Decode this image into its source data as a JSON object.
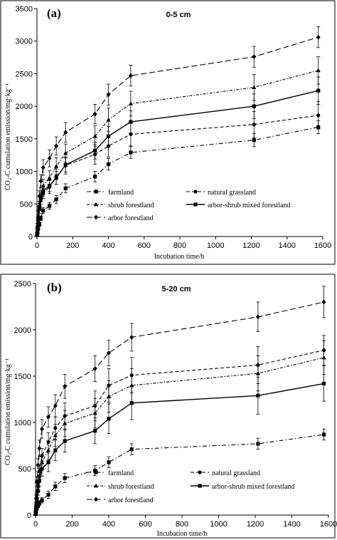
{
  "chart_data": [
    {
      "type": "line",
      "panel_label": "(a)",
      "depth": "0-5 cm",
      "xlabel": "Incubation time/h",
      "ylabel": "CO₂-C cumulation emission/mg·kg⁻¹",
      "xlim": [
        0,
        1600
      ],
      "ylim": [
        0,
        3500
      ],
      "x_ticks": [
        "0",
        "200",
        "400",
        "600",
        "800",
        "1000",
        "1200",
        "1400",
        "1600"
      ],
      "y_ticks": [
        "0",
        "500",
        "1000",
        "1500",
        "2000",
        "2500",
        "3000",
        "3500"
      ],
      "grid": false,
      "x": [
        1,
        3,
        7,
        14,
        21,
        35,
        70,
        108,
        160,
        325,
        400,
        525,
        1215,
        1575
      ],
      "series": [
        {
          "name": "farmland",
          "values": [
            20,
            60,
            120,
            190,
            280,
            400,
            470,
            570,
            740,
            920,
            1110,
            1290,
            1480,
            1680
          ],
          "errors": [
            8,
            15,
            25,
            30,
            35,
            45,
            50,
            60,
            70,
            80,
            90,
            90,
            100,
            100
          ]
        },
        {
          "name": "natural grassland",
          "values": [
            40,
            120,
            250,
            420,
            560,
            660,
            760,
            920,
            1090,
            1260,
            1390,
            1570,
            1720,
            1860
          ],
          "errors": [
            10,
            25,
            40,
            60,
            70,
            80,
            100,
            120,
            130,
            150,
            170,
            180,
            200,
            210
          ]
        },
        {
          "name": "shrub forestland",
          "values": [
            45,
            140,
            300,
            480,
            620,
            780,
            900,
            1080,
            1280,
            1540,
            1790,
            2040,
            2290,
            2550
          ],
          "errors": [
            12,
            30,
            45,
            60,
            80,
            100,
            110,
            130,
            140,
            160,
            180,
            190,
            200,
            210
          ]
        },
        {
          "name": "arbor-shrub mixed forestland",
          "values": [
            40,
            130,
            280,
            450,
            600,
            700,
            780,
            900,
            1100,
            1320,
            1540,
            1760,
            2000,
            2240
          ],
          "errors": [
            10,
            25,
            40,
            55,
            70,
            80,
            90,
            100,
            110,
            130,
            150,
            170,
            190,
            210
          ]
        },
        {
          "name": "arbor forestland",
          "values": [
            60,
            200,
            400,
            620,
            850,
            1060,
            1200,
            1390,
            1600,
            1880,
            2180,
            2470,
            2760,
            3060
          ],
          "errors": [
            15,
            40,
            60,
            80,
            100,
            120,
            130,
            140,
            150,
            150,
            160,
            160,
            160,
            160
          ]
        }
      ],
      "markers": [
        "square",
        "circle",
        "triangle",
        "square",
        "diamond"
      ],
      "dashes": [
        "6,3,1.5,3",
        "5,3",
        "4,2,1.5,2",
        "",
        "8,4"
      ],
      "legend": {
        "placement": "upper-middle",
        "rows": [
          [
            "farmland",
            "natural grassland"
          ],
          [
            "shrub forestland",
            "arbor-shrub mixed forestland"
          ],
          [
            "arbor forestland"
          ]
        ]
      }
    },
    {
      "type": "line",
      "panel_label": "(b)",
      "depth": "5-20 cm",
      "xlabel": "Incubation time/h",
      "ylabel": "CO₂-C cumulation emission/mg·kg⁻¹",
      "xlim": [
        0,
        1600
      ],
      "ylim": [
        0,
        2500
      ],
      "x_ticks": [
        "0",
        "200",
        "400",
        "600",
        "800",
        "1000",
        "1200",
        "1400",
        "1600"
      ],
      "y_ticks": [
        "0",
        "500",
        "1000",
        "1500",
        "2000",
        "2500"
      ],
      "grid": false,
      "x": [
        1,
        3,
        7,
        14,
        21,
        35,
        70,
        108,
        160,
        325,
        400,
        525,
        1215,
        1575
      ],
      "series": [
        {
          "name": "farmland",
          "values": [
            10,
            40,
            70,
            100,
            130,
            160,
            220,
            310,
            400,
            480,
            570,
            710,
            770,
            870
          ],
          "errors": [
            5,
            10,
            15,
            20,
            25,
            30,
            40,
            45,
            50,
            55,
            60,
            60,
            60,
            60
          ]
        },
        {
          "name": "natural grassland",
          "values": [
            35,
            110,
            220,
            350,
            470,
            640,
            790,
            940,
            1070,
            1180,
            1400,
            1510,
            1620,
            1780
          ],
          "errors": [
            10,
            25,
            40,
            55,
            70,
            80,
            100,
            120,
            140,
            160,
            180,
            190,
            200,
            160
          ]
        },
        {
          "name": "shrub forestland",
          "values": [
            30,
            100,
            200,
            320,
            430,
            570,
            700,
            860,
            990,
            1100,
            1280,
            1400,
            1530,
            1700
          ],
          "errors": [
            10,
            25,
            40,
            55,
            70,
            80,
            100,
            120,
            140,
            160,
            170,
            180,
            190,
            180
          ]
        },
        {
          "name": "arbor-shrub mixed forestland",
          "values": [
            20,
            80,
            160,
            260,
            370,
            500,
            570,
            700,
            800,
            910,
            1040,
            1210,
            1290,
            1420
          ],
          "errors": [
            8,
            20,
            30,
            45,
            60,
            80,
            100,
            110,
            120,
            140,
            160,
            180,
            200,
            190
          ]
        },
        {
          "name": "arbor forestland",
          "values": [
            40,
            180,
            360,
            540,
            720,
            930,
            1060,
            1180,
            1390,
            1580,
            1750,
            1920,
            2140,
            2300
          ],
          "errors": [
            12,
            35,
            55,
            70,
            90,
            100,
            110,
            120,
            130,
            140,
            140,
            150,
            160,
            170
          ]
        }
      ],
      "markers": [
        "square",
        "circle",
        "triangle",
        "square",
        "diamond"
      ],
      "dashes": [
        "6,3,1.5,3",
        "5,3",
        "4,2,1.5,2",
        "",
        "8,4"
      ],
      "legend": {
        "placement": "bottom",
        "rows": [
          [
            "farmland",
            "natural grassland"
          ],
          [
            "shrub forestland",
            "arbor-shrub mixed forestland"
          ],
          [
            "arbor forestland"
          ]
        ]
      }
    }
  ]
}
